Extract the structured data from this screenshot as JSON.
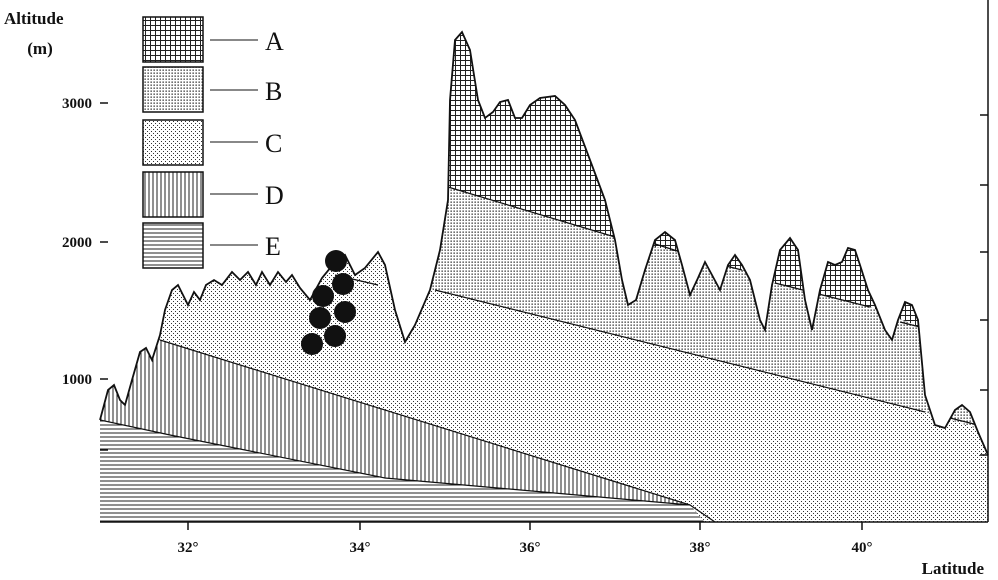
{
  "axis": {
    "y_title_line1": "Altitude",
    "y_title_line2": "(m)",
    "y_ticks": [
      "1000",
      "2000",
      "3000"
    ],
    "x_ticks": [
      "32°",
      "34°",
      "36°",
      "38°",
      "40°"
    ],
    "x_title": "Latitude"
  },
  "legend": [
    "A",
    "B",
    "C",
    "D",
    "E"
  ]
}
